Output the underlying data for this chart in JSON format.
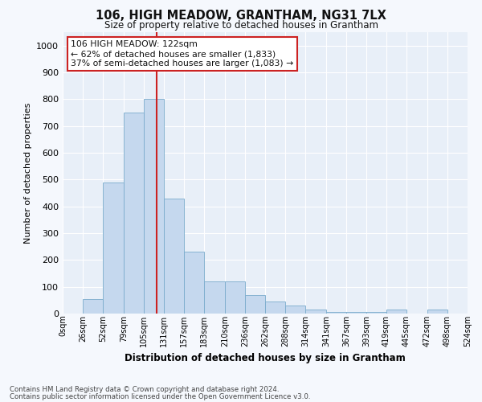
{
  "title": "106, HIGH MEADOW, GRANTHAM, NG31 7LX",
  "subtitle": "Size of property relative to detached houses in Grantham",
  "xlabel": "Distribution of detached houses by size in Grantham",
  "ylabel": "Number of detached properties",
  "bar_color": "#c5d8ee",
  "bar_edge_color": "#7aabcc",
  "background_color": "#e8eff8",
  "fig_background_color": "#f5f8fd",
  "grid_color": "#ffffff",
  "redline_color": "#cc2222",
  "redline_x": 122,
  "bin_edges": [
    0,
    26,
    52,
    79,
    105,
    131,
    157,
    183,
    210,
    236,
    262,
    288,
    314,
    341,
    367,
    393,
    419,
    445,
    472,
    498,
    524
  ],
  "bar_heights": [
    0,
    55,
    490,
    750,
    800,
    430,
    230,
    120,
    120,
    70,
    45,
    30,
    15,
    5,
    5,
    5,
    15,
    0,
    15,
    0,
    0
  ],
  "tick_labels": [
    "0sqm",
    "26sqm",
    "52sqm",
    "79sqm",
    "105sqm",
    "131sqm",
    "157sqm",
    "183sqm",
    "210sqm",
    "236sqm",
    "262sqm",
    "288sqm",
    "314sqm",
    "341sqm",
    "367sqm",
    "393sqm",
    "419sqm",
    "445sqm",
    "472sqm",
    "498sqm",
    "524sqm"
  ],
  "ylim": [
    0,
    1050
  ],
  "yticks": [
    0,
    100,
    200,
    300,
    400,
    500,
    600,
    700,
    800,
    900,
    1000
  ],
  "annotation_line1": "106 HIGH MEADOW: 122sqm",
  "annotation_line2": "← 62% of detached houses are smaller (1,833)",
  "annotation_line3": "37% of semi-detached houses are larger (1,083) →",
  "annotation_box_color": "#ffffff",
  "annotation_box_edge_color": "#cc2222",
  "footer_line1": "Contains HM Land Registry data © Crown copyright and database right 2024.",
  "footer_line2": "Contains public sector information licensed under the Open Government Licence v3.0."
}
